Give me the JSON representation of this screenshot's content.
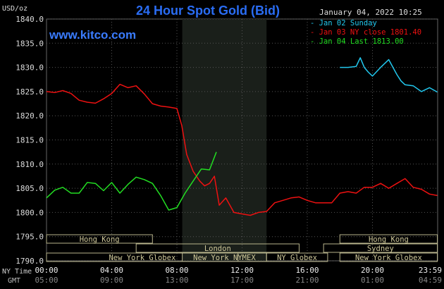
{
  "chart_data": {
    "type": "line",
    "title": "24 Hour Spot Gold (Bid)",
    "unit_label": "USD/oz",
    "watermark": "www.kitco.com",
    "timestamp": "January 04, 2022 10:25",
    "ylim": [
      1790,
      1840
    ],
    "y_ticks": [
      "1840.0",
      "1835.0",
      "1830.0",
      "1825.0",
      "1820.0",
      "1815.0",
      "1810.0",
      "1805.0",
      "1800.0",
      "1795.0",
      "1790.0"
    ],
    "x_ticks_ny": [
      "00:00",
      "04:00",
      "08:00",
      "12:00",
      "16:00",
      "20:00",
      "23:59"
    ],
    "x_ticks_gmt": [
      "05:00",
      "09:00",
      "13:00",
      "17:00",
      "21:00",
      "01:00",
      "04:59"
    ],
    "axis_label_ny": "NY Time",
    "axis_label_gmt": "GMT",
    "sessions": [
      {
        "name": "Hong Kong",
        "start": 0,
        "end": 6.5
      },
      {
        "name": "London",
        "start": 5.5,
        "end": 15.5
      },
      {
        "name": "New York Globex",
        "start": 0,
        "end": 11.75
      },
      {
        "name": "New York NYMEX",
        "start": 8.33,
        "end": 13.5
      },
      {
        "name": "NY Globex",
        "start": 13.5,
        "end": 17.25
      },
      {
        "name": "Hong Kong",
        "start": 18.0,
        "end": 23.98
      },
      {
        "name": "Sydney",
        "start": 17.0,
        "end": 23.98
      },
      {
        "name": "New York Globex",
        "start": 18.0,
        "end": 23.98
      }
    ],
    "highlight_hours": [
      8.33,
      13.5
    ],
    "series": [
      {
        "name": "Jan 02 Sunday",
        "color": "#22c8ee",
        "x": [
          18.0,
          18.5,
          19.0,
          19.25,
          19.5,
          19.75,
          20.0,
          20.5,
          21.0,
          21.5,
          21.75,
          22.0,
          22.5,
          23.0,
          23.5,
          23.98
        ],
        "y": [
          1830.0,
          1830.0,
          1830.2,
          1832.0,
          1830.0,
          1829.0,
          1828.2,
          1830.0,
          1831.6,
          1828.5,
          1827.2,
          1826.4,
          1826.2,
          1825.0,
          1825.8,
          1824.9
        ]
      },
      {
        "name": "Jan 03 NY close 1801.40",
        "color": "#ee1111",
        "x": [
          0,
          0.5,
          1,
          1.5,
          2,
          2.5,
          3,
          3.5,
          4,
          4.5,
          5,
          5.5,
          6,
          6.5,
          7,
          7.5,
          8,
          8.3,
          8.6,
          9,
          9.4,
          9.7,
          10,
          10.3,
          10.6,
          11,
          11.5,
          12,
          12.5,
          13,
          13.5,
          14,
          14.5,
          15,
          15.5,
          16,
          16.5,
          17,
          17.5,
          18,
          18.5,
          19,
          19.5,
          20,
          20.5,
          21,
          21.5,
          22,
          22.5,
          23,
          23.5,
          23.98
        ],
        "y": [
          1825.0,
          1824.8,
          1825.2,
          1824.6,
          1823.2,
          1822.8,
          1822.6,
          1823.5,
          1824.6,
          1826.5,
          1825.8,
          1826.2,
          1824.5,
          1822.5,
          1822.0,
          1821.8,
          1821.5,
          1818.0,
          1812.0,
          1808.5,
          1806.5,
          1805.5,
          1806.0,
          1807.5,
          1801.5,
          1803.0,
          1800.0,
          1799.7,
          1799.4,
          1800.0,
          1800.2,
          1802.0,
          1802.5,
          1803.0,
          1803.2,
          1802.5,
          1802.0,
          1802.0,
          1802.0,
          1804.0,
          1804.3,
          1804.0,
          1805.2,
          1805.2,
          1806.0,
          1805.0,
          1806.0,
          1807.0,
          1805.2,
          1804.8,
          1803.8,
          1803.5
        ]
      },
      {
        "name": "Jan 04 Last 1813.00",
        "color": "#22dd22",
        "x": [
          0,
          0.5,
          1,
          1.5,
          2,
          2.5,
          3,
          3.5,
          4,
          4.5,
          5,
          5.5,
          6,
          6.5,
          7,
          7.5,
          8,
          8.5,
          9,
          9.5,
          10,
          10.42
        ],
        "y": [
          1803.0,
          1804.6,
          1805.2,
          1804.0,
          1804.0,
          1806.2,
          1806.0,
          1804.5,
          1806.2,
          1804.0,
          1805.8,
          1807.3,
          1806.8,
          1806.0,
          1803.5,
          1800.5,
          1801.0,
          1804.0,
          1806.5,
          1809.0,
          1808.8,
          1812.5
        ]
      }
    ]
  }
}
